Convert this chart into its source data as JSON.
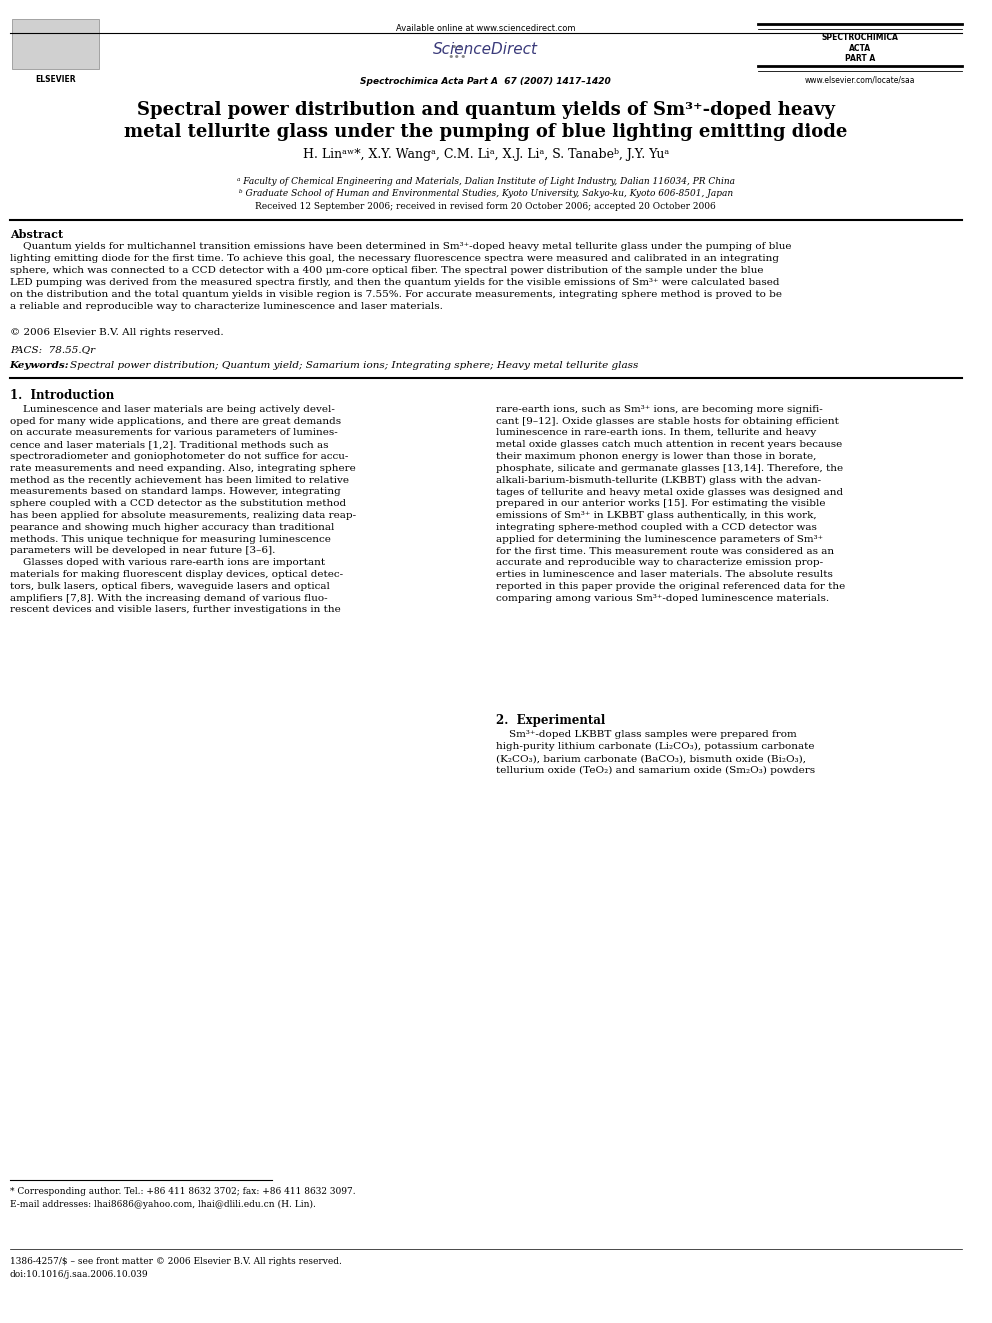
{
  "page_width": 9.92,
  "page_height": 13.23,
  "bg_color": "#ffffff",
  "header": {
    "available_online": "Available online at www.sciencedirect.com",
    "sciencedirect": "ScienceDirect",
    "journal_line": "Spectrochimica Acta Part A  67 (2007) 1417–1420",
    "journal_name_right1": "SPECTROCHIMICA",
    "journal_name_right2": "ACTA",
    "journal_name_right3": "PART A",
    "website_right": "www.elsevier.com/locate/saa"
  },
  "title_line1": "Spectral power distribution and quantum yields of Sm³⁺-doped heavy",
  "title_line2": "metal tellurite glass under the pumping of blue lighting emitting diode",
  "authors": "H. Linᵃʷ*, X.Y. Wangᵃ, C.M. Liᵃ, X.J. Liᵃ, S. Tanabeᵇ, J.Y. Yuᵃ",
  "affil_a": "ᵃ Faculty of Chemical Engineering and Materials, Dalian Institute of Light Industry, Dalian 116034, PR China",
  "affil_b": "ᵇ Graduate School of Human and Environmental Studies, Kyoto University, Sakyo-ku, Kyoto 606-8501, Japan",
  "received": "Received 12 September 2006; received in revised form 20 October 2006; accepted 20 October 2006",
  "abstract_title": "Abstract",
  "copyright": "© 2006 Elsevier B.V. All rights reserved.",
  "pacs": "PACS:  78.55.Qr",
  "kw_label": "Keywords:  ",
  "kw_rest": "Spectral power distribution; Quantum yield; Samarium ions; Integrating sphere; Heavy metal tellurite glass",
  "section1_title": "1.  Introduction",
  "section2_title": "2.  Experimental",
  "footnote_star": "* Corresponding author. Tel.: +86 411 8632 3702; fax: +86 411 8632 3097.",
  "footnote_email": "E-mail addresses: lhai8686@yahoo.com, lhai@dlili.edu.cn (H. Lin).",
  "footer_issn": "1386-4257/$ – see front matter © 2006 Elsevier B.V. All rights reserved.",
  "footer_doi": "doi:10.1016/j.saa.2006.10.039"
}
